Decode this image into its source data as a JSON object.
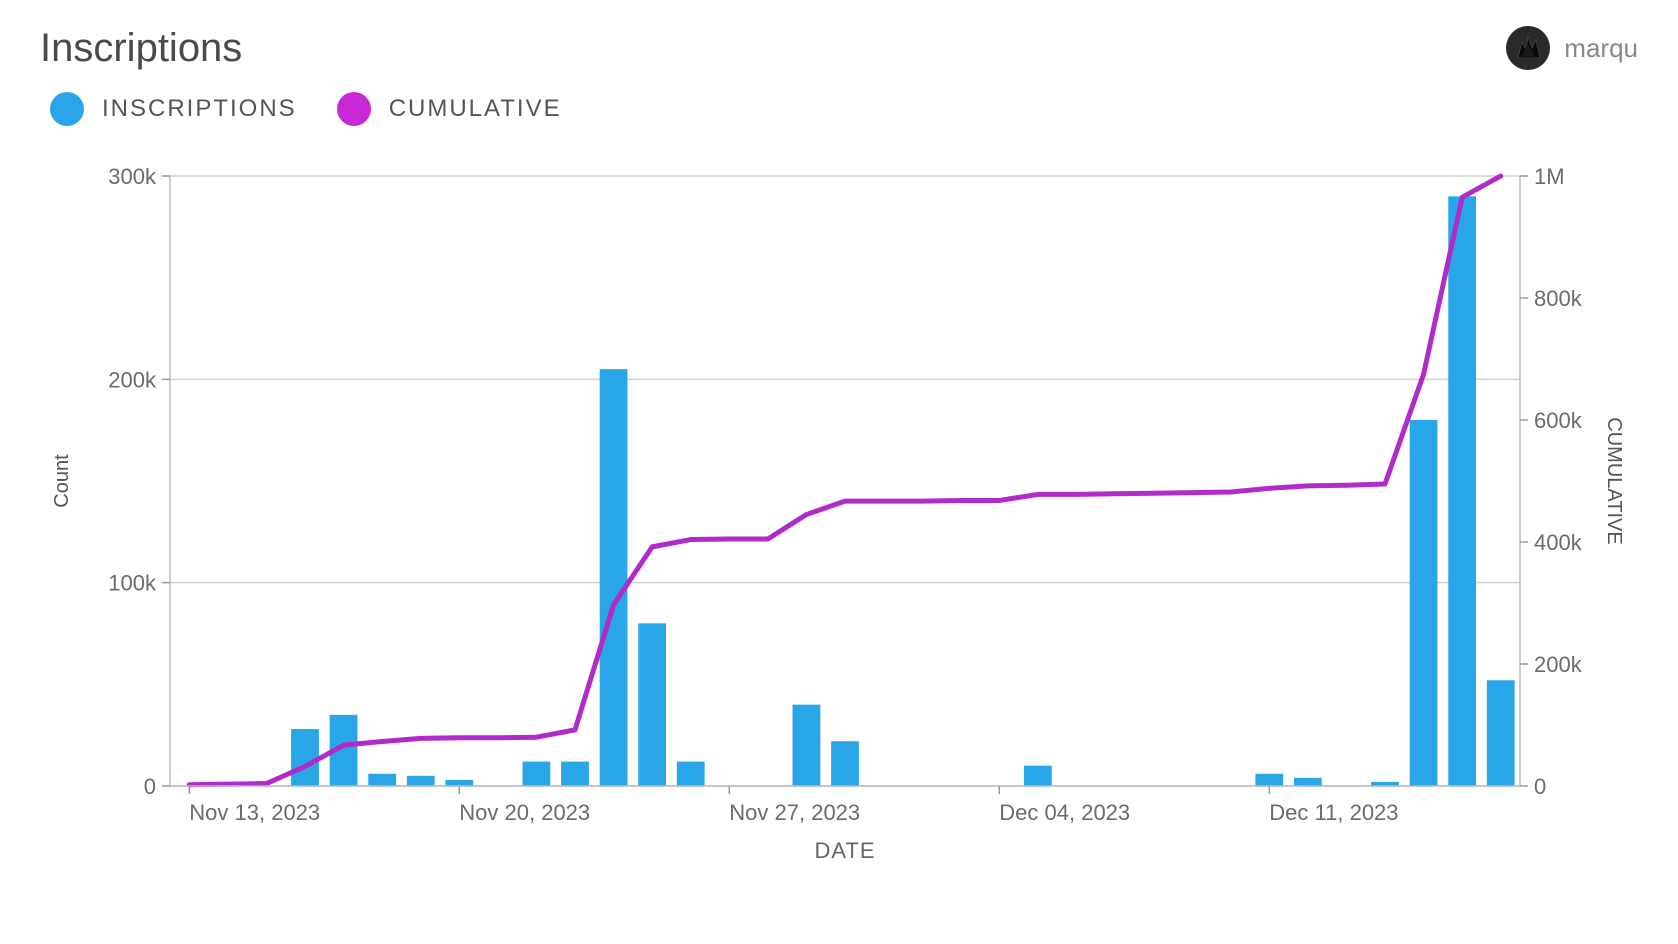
{
  "header": {
    "title": "Inscriptions",
    "profile_name": "marqu"
  },
  "legend": {
    "items": [
      {
        "label": "INSCRIPTIONS",
        "color": "#29a6e8",
        "shape": "circle"
      },
      {
        "label": "CUMULATIVE",
        "color": "#c928d6",
        "shape": "circle"
      }
    ]
  },
  "chart": {
    "type": "bar+line",
    "background_color": "#ffffff",
    "grid_color": "#d0d0d0",
    "bar_color": "#29a6e8",
    "line_color": "#b02bc9",
    "line_width": 5,
    "bar_width_ratio": 0.72,
    "y_left": {
      "title": "Count",
      "min": 0,
      "max": 300000,
      "ticks": [
        {
          "v": 0,
          "label": "0"
        },
        {
          "v": 100000,
          "label": "100k"
        },
        {
          "v": 200000,
          "label": "200k"
        },
        {
          "v": 300000,
          "label": "300k"
        }
      ],
      "title_fontsize": 20,
      "tick_fontsize": 22
    },
    "y_right": {
      "title": "CUMULATIVE",
      "min": 0,
      "max": 1000000,
      "ticks": [
        {
          "v": 0,
          "label": "0"
        },
        {
          "v": 200000,
          "label": "200k"
        },
        {
          "v": 400000,
          "label": "400k"
        },
        {
          "v": 600000,
          "label": "600k"
        },
        {
          "v": 800000,
          "label": "800k"
        },
        {
          "v": 1000000,
          "label": "1M"
        }
      ],
      "title_fontsize": 20,
      "tick_fontsize": 22
    },
    "x": {
      "title": "DATE",
      "ticks": [
        {
          "idx": 0,
          "label": "Nov 13, 2023"
        },
        {
          "idx": 7,
          "label": "Nov 20, 2023"
        },
        {
          "idx": 14,
          "label": "Nov 27, 2023"
        },
        {
          "idx": 21,
          "label": "Dec 04, 2023"
        },
        {
          "idx": 28,
          "label": "Dec 11, 2023"
        }
      ],
      "title_fontsize": 22,
      "tick_fontsize": 22
    },
    "bars": [
      0,
      0,
      0,
      28000,
      35000,
      6000,
      5000,
      3000,
      0,
      12000,
      12000,
      205000,
      80000,
      12000,
      0,
      0,
      40000,
      22000,
      0,
      0,
      0,
      0,
      10000,
      0,
      0,
      0,
      0,
      0,
      6000,
      4000,
      0,
      2000,
      180000,
      290000,
      52000
    ],
    "cumulative": [
      2000,
      3000,
      4000,
      32000,
      67000,
      73000,
      78000,
      79000,
      79000,
      80000,
      92000,
      297000,
      392000,
      404000,
      405000,
      405000,
      445000,
      467000,
      467000,
      467000,
      468000,
      468000,
      478000,
      478000,
      479000,
      480000,
      481000,
      482000,
      488000,
      492000,
      493000,
      495000,
      675000,
      965000,
      1000000
    ]
  }
}
